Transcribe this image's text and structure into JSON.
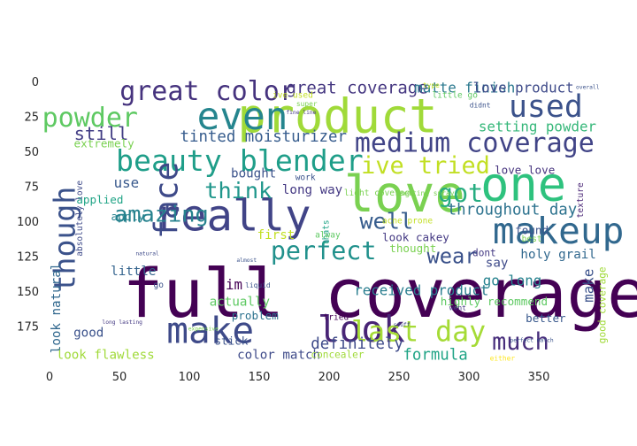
{
  "chart_data": {
    "type": "wordcloud",
    "title": "",
    "xlabel": "",
    "ylabel": "",
    "xlim": [
      0,
      400
    ],
    "ylim": [
      200,
      0
    ],
    "x_ticks": [
      0,
      50,
      100,
      150,
      200,
      250,
      300,
      350
    ],
    "y_ticks": [
      0,
      25,
      50,
      75,
      100,
      125,
      150,
      175
    ],
    "grid": false,
    "colormap": "viridis",
    "words": [
      {
        "text": "full coverage",
        "x": 240,
        "y": 155,
        "size": 48,
        "color": "#440154",
        "rotate": 0
      },
      {
        "text": "product",
        "x": 206,
        "y": 27,
        "size": 34,
        "color": "#a0da39",
        "rotate": 0
      },
      {
        "text": "one",
        "x": 339,
        "y": 76,
        "size": 34,
        "color": "#2ec27e",
        "rotate": 0
      },
      {
        "text": "love",
        "x": 254,
        "y": 83,
        "size": 36,
        "color": "#7ad151",
        "rotate": 0
      },
      {
        "text": "really",
        "x": 131,
        "y": 98,
        "size": 31,
        "color": "#414487",
        "rotate": 0
      },
      {
        "text": "makeup",
        "x": 364,
        "y": 109,
        "size": 26,
        "color": "#31688e",
        "rotate": 0
      },
      {
        "text": "make",
        "x": 115,
        "y": 180,
        "size": 26,
        "color": "#3e4a89",
        "rotate": 0
      },
      {
        "text": "look",
        "x": 223,
        "y": 179,
        "size": 26,
        "color": "#482475",
        "rotate": 0
      },
      {
        "text": "even",
        "x": 138,
        "y": 27,
        "size": 27,
        "color": "#25858e",
        "rotate": 0
      },
      {
        "text": "used",
        "x": 355,
        "y": 19,
        "size": 22,
        "color": "#3b528b",
        "rotate": 0
      },
      {
        "text": "beauty blender",
        "x": 136,
        "y": 58,
        "size": 21,
        "color": "#1f9e89",
        "rotate": 0
      },
      {
        "text": "medium coverage",
        "x": 304,
        "y": 45,
        "size": 19,
        "color": "#414487",
        "rotate": 0
      },
      {
        "text": "great color",
        "x": 113,
        "y": 8,
        "size": 19,
        "color": "#46337e",
        "rotate": 0
      },
      {
        "text": "ive tried",
        "x": 269,
        "y": 61,
        "size": 17,
        "color": "#c2df23",
        "rotate": 0
      },
      {
        "text": "face",
        "x": 85,
        "y": 85,
        "size": 23,
        "color": "#3e4a89",
        "rotate": 90
      },
      {
        "text": "though",
        "x": 12,
        "y": 113,
        "size": 21,
        "color": "#3b528b",
        "rotate": 90
      },
      {
        "text": "amazing",
        "x": 80,
        "y": 96,
        "size": 16,
        "color": "#26828e",
        "rotate": 0
      },
      {
        "text": "powder",
        "x": 29,
        "y": 27,
        "size": 19,
        "color": "#5ec962",
        "rotate": 0
      },
      {
        "text": "got",
        "x": 294,
        "y": 81,
        "size": 18,
        "color": "#27ad81",
        "rotate": 0
      },
      {
        "text": "think",
        "x": 135,
        "y": 79,
        "size": 16,
        "color": "#1f968b",
        "rotate": 0
      },
      {
        "text": "well",
        "x": 241,
        "y": 101,
        "size": 16,
        "color": "#365c8d",
        "rotate": 0
      },
      {
        "text": "perfect",
        "x": 196,
        "y": 122,
        "size": 18,
        "color": "#21918c",
        "rotate": 0
      },
      {
        "text": "wear",
        "x": 288,
        "y": 126,
        "size": 15,
        "color": "#3b528b",
        "rotate": 0
      },
      {
        "text": "last day",
        "x": 264,
        "y": 180,
        "size": 20,
        "color": "#a5db36",
        "rotate": 0
      },
      {
        "text": "much",
        "x": 337,
        "y": 187,
        "size": 17,
        "color": "#472d7b",
        "rotate": 0
      },
      {
        "text": "great coverage",
        "x": 220,
        "y": 5,
        "size": 12,
        "color": "#453781",
        "rotate": 0
      },
      {
        "text": "tinted moisturizer",
        "x": 153,
        "y": 40,
        "size": 11,
        "color": "#365c8d",
        "rotate": 0
      },
      {
        "text": "still",
        "x": 37,
        "y": 38,
        "size": 13,
        "color": "#433e85",
        "rotate": 0
      },
      {
        "text": "matte finish",
        "x": 297,
        "y": 5,
        "size": 10,
        "color": "#2a788e",
        "rotate": 0
      },
      {
        "text": "love product",
        "x": 339,
        "y": 5,
        "size": 10,
        "color": "#3e4a89",
        "rotate": 0
      },
      {
        "text": "setting powder",
        "x": 349,
        "y": 33,
        "size": 10,
        "color": "#35b779",
        "rotate": 0
      },
      {
        "text": "throughout day",
        "x": 331,
        "y": 92,
        "size": 11,
        "color": "#2c728e",
        "rotate": 0
      },
      {
        "text": "received product",
        "x": 266,
        "y": 150,
        "size": 10,
        "color": "#287d8e",
        "rotate": 0
      },
      {
        "text": "highly recommend",
        "x": 318,
        "y": 158,
        "size": 8,
        "color": "#5ec962",
        "rotate": 0
      },
      {
        "text": "definitely",
        "x": 220,
        "y": 188,
        "size": 11,
        "color": "#3e4a89",
        "rotate": 0
      },
      {
        "text": "formula",
        "x": 276,
        "y": 196,
        "size": 11,
        "color": "#20a486",
        "rotate": 0
      },
      {
        "text": "color match",
        "x": 164,
        "y": 196,
        "size": 9,
        "color": "#3e4a89",
        "rotate": 0
      },
      {
        "text": "look flawless",
        "x": 40,
        "y": 196,
        "size": 9,
        "color": "#a0da39",
        "rotate": 0
      },
      {
        "text": "look natural",
        "x": 5,
        "y": 162,
        "size": 9,
        "color": "#31688e",
        "rotate": 90
      },
      {
        "text": "good",
        "x": 28,
        "y": 180,
        "size": 9,
        "color": "#3b528b",
        "rotate": 0
      },
      {
        "text": "use",
        "x": 55,
        "y": 73,
        "size": 10,
        "color": "#38588c",
        "rotate": 0
      },
      {
        "text": "apply",
        "x": 56,
        "y": 97,
        "size": 8,
        "color": "#26828e",
        "rotate": 0
      },
      {
        "text": "applied",
        "x": 36,
        "y": 85,
        "size": 8,
        "color": "#20a486",
        "rotate": 0
      },
      {
        "text": "extremely",
        "x": 39,
        "y": 45,
        "size": 8,
        "color": "#7ad151",
        "rotate": 0
      },
      {
        "text": "bought",
        "x": 146,
        "y": 66,
        "size": 9,
        "color": "#3b528b",
        "rotate": 0
      },
      {
        "text": "long way",
        "x": 188,
        "y": 78,
        "size": 9,
        "color": "#443983",
        "rotate": 0
      },
      {
        "text": "first",
        "x": 162,
        "y": 110,
        "size": 9,
        "color": "#c2df23",
        "rotate": 0
      },
      {
        "text": "little",
        "x": 60,
        "y": 136,
        "size": 9,
        "color": "#33638d",
        "rotate": 0
      },
      {
        "text": "im",
        "x": 132,
        "y": 146,
        "size": 10,
        "color": "#440154",
        "rotate": 0
      },
      {
        "text": "actually",
        "x": 136,
        "y": 158,
        "size": 9,
        "color": "#5ec962",
        "rotate": 0
      },
      {
        "text": "problem",
        "x": 147,
        "y": 168,
        "size": 8,
        "color": "#2c728e",
        "rotate": 0
      },
      {
        "text": "stick",
        "x": 130,
        "y": 186,
        "size": 8,
        "color": "#3b528b",
        "rotate": 0
      },
      {
        "text": "concealer",
        "x": 206,
        "y": 196,
        "size": 7,
        "color": "#a0da39",
        "rotate": 0
      },
      {
        "text": "look cakey",
        "x": 262,
        "y": 112,
        "size": 8,
        "color": "#443983",
        "rotate": 0
      },
      {
        "text": "thought",
        "x": 260,
        "y": 120,
        "size": 8,
        "color": "#7ad151",
        "rotate": 0
      },
      {
        "text": "say",
        "x": 320,
        "y": 130,
        "size": 9,
        "color": "#3e4a89",
        "rotate": 0
      },
      {
        "text": "go long",
        "x": 331,
        "y": 143,
        "size": 10,
        "color": "#26828e",
        "rotate": 0
      },
      {
        "text": "dont",
        "x": 311,
        "y": 123,
        "size": 7,
        "color": "#443983",
        "rotate": 0
      },
      {
        "text": "love love",
        "x": 340,
        "y": 64,
        "size": 8,
        "color": "#46337e",
        "rotate": 0
      },
      {
        "text": "found",
        "x": 345,
        "y": 107,
        "size": 8,
        "color": "#3b528b",
        "rotate": 0
      },
      {
        "text": "best",
        "x": 345,
        "y": 113,
        "size": 6,
        "color": "#7ad151",
        "rotate": 0
      },
      {
        "text": "holy grail",
        "x": 364,
        "y": 124,
        "size": 9,
        "color": "#31688e",
        "rotate": 0
      },
      {
        "text": "make",
        "x": 386,
        "y": 146,
        "size": 10,
        "color": "#3b528b",
        "rotate": 90
      },
      {
        "text": "better",
        "x": 355,
        "y": 170,
        "size": 8,
        "color": "#38588c",
        "rotate": 0
      },
      {
        "text": "good coverage",
        "x": 396,
        "y": 160,
        "size": 7,
        "color": "#a0da39",
        "rotate": 90
      },
      {
        "text": "texture",
        "x": 380,
        "y": 85,
        "size": 6,
        "color": "#482475",
        "rotate": 90
      },
      {
        "text": "acne prone",
        "x": 256,
        "y": 100,
        "size": 6,
        "color": "#c2df23",
        "rotate": 0
      },
      {
        "text": "light coverage",
        "x": 236,
        "y": 80,
        "size": 6,
        "color": "#7ad151",
        "rotate": 0
      },
      {
        "text": "setting spray",
        "x": 270,
        "y": 80,
        "size": 5,
        "color": "#7ad151",
        "rotate": 0
      },
      {
        "text": "work",
        "x": 183,
        "y": 69,
        "size": 6,
        "color": "#3b528b",
        "rotate": 0
      },
      {
        "text": "thats",
        "x": 198,
        "y": 108,
        "size": 6,
        "color": "#20a486",
        "rotate": 90
      },
      {
        "text": "alway",
        "x": 199,
        "y": 110,
        "size": 6,
        "color": "#5ec962",
        "rotate": 0
      },
      {
        "text": "tried",
        "x": 205,
        "y": 169,
        "size": 6,
        "color": "#440154",
        "rotate": 0
      },
      {
        "text": "liquid",
        "x": 149,
        "y": 146,
        "size": 5,
        "color": "#3b528b",
        "rotate": 0
      },
      {
        "text": "ive used",
        "x": 174,
        "y": 10,
        "size": 6,
        "color": "#c2df23",
        "rotate": 0
      },
      {
        "text": "little go",
        "x": 290,
        "y": 10,
        "size": 6,
        "color": "#5ec962",
        "rotate": 0
      },
      {
        "text": "didnt",
        "x": 308,
        "y": 17,
        "size": 5,
        "color": "#3b528b",
        "rotate": 0
      },
      {
        "text": "type",
        "x": 273,
        "y": 3,
        "size": 5,
        "color": "#c2df23",
        "rotate": 0
      },
      {
        "text": "overall",
        "x": 385,
        "y": 4,
        "size": 4,
        "color": "#3b528b",
        "rotate": 0
      },
      {
        "text": "went",
        "x": 292,
        "y": 162,
        "size": 5,
        "color": "#443983",
        "rotate": 0
      },
      {
        "text": "either",
        "x": 324,
        "y": 198,
        "size": 5,
        "color": "#fde725",
        "rotate": 0
      },
      {
        "text": "stuff",
        "x": 252,
        "y": 174,
        "size": 4,
        "color": "#3e4a89",
        "rotate": 0
      },
      {
        "text": "perfect match",
        "x": 345,
        "y": 185,
        "size": 4,
        "color": "#3b528b",
        "rotate": 0
      },
      {
        "text": "absolutely love",
        "x": 22,
        "y": 98,
        "size": 6,
        "color": "#3e4a89",
        "rotate": 90
      },
      {
        "text": "long lasting",
        "x": 52,
        "y": 172,
        "size": 4,
        "color": "#443983",
        "rotate": 0
      },
      {
        "text": "fine line",
        "x": 180,
        "y": 22,
        "size": 4,
        "color": "#443983",
        "rotate": 0
      },
      {
        "text": "super",
        "x": 184,
        "y": 16,
        "size": 5,
        "color": "#7ad151",
        "rotate": 0
      },
      {
        "text": "almost",
        "x": 141,
        "y": 128,
        "size": 4,
        "color": "#3b528b",
        "rotate": 0
      },
      {
        "text": "natural",
        "x": 70,
        "y": 123,
        "size": 4,
        "color": "#3e4a89",
        "rotate": 0
      },
      {
        "text": "expensive",
        "x": 110,
        "y": 177,
        "size": 4,
        "color": "#7ad151",
        "rotate": 0
      },
      {
        "text": "go",
        "x": 78,
        "y": 146,
        "size": 6,
        "color": "#3b528b",
        "rotate": 0
      }
    ]
  }
}
